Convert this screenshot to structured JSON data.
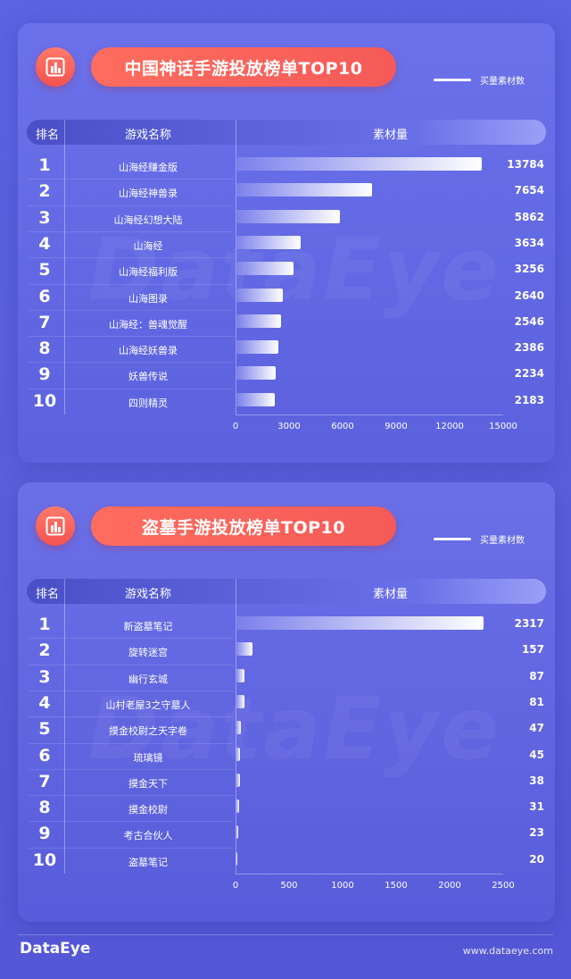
{
  "legend_label": "买量素材数",
  "header": {
    "rank": "排名",
    "name": "游戏名称",
    "value": "素材量"
  },
  "watermark": "DataEye",
  "footer": {
    "logo": "DataEye",
    "url": "www.dataeye.com"
  },
  "colors": {
    "accent": "#f55a58",
    "bar_start": "#ffffff",
    "bar_end": "#8c90f0"
  },
  "icons": [
    "bar-chart-icon"
  ],
  "chart_data": [
    {
      "type": "bar",
      "orientation": "horizontal",
      "title": "中国神话手游投放榜单TOP10",
      "series_name": "买量素材数",
      "ranks": [
        "1",
        "2",
        "3",
        "4",
        "5",
        "6",
        "7",
        "8",
        "9",
        "10"
      ],
      "categories": [
        "山海经赚金版",
        "山海经神兽录",
        "山海经幻想大陆",
        "山海经",
        "山海经福利版",
        "山海图录",
        "山海经：兽魂觉醒",
        "山海经妖兽录",
        "妖兽传说",
        "四则精灵"
      ],
      "values": [
        13784,
        7654,
        5862,
        3634,
        3256,
        2640,
        2546,
        2386,
        2234,
        2183
      ],
      "xlim": [
        0,
        15000
      ],
      "ticks": [
        "0",
        "3000",
        "6000",
        "9000",
        "12000",
        "15000"
      ]
    },
    {
      "type": "bar",
      "orientation": "horizontal",
      "title": "盗墓手游投放榜单TOP10",
      "series_name": "买量素材数",
      "ranks": [
        "1",
        "2",
        "3",
        "4",
        "5",
        "6",
        "7",
        "8",
        "9",
        "10"
      ],
      "categories": [
        "新盗墓笔记",
        "旋转迷宫",
        "幽行玄城",
        "山村老屋3之守墓人",
        "摸金校尉之天字卷",
        "琉璃镜",
        "摸金天下",
        "摸金校尉",
        "考古合伙人",
        "盗墓笔记"
      ],
      "values": [
        2317,
        157,
        87,
        81,
        47,
        45,
        38,
        31,
        23,
        20
      ],
      "xlim": [
        0,
        2500
      ],
      "ticks": [
        "0",
        "500",
        "1000",
        "1500",
        "2000",
        "2500"
      ]
    }
  ]
}
